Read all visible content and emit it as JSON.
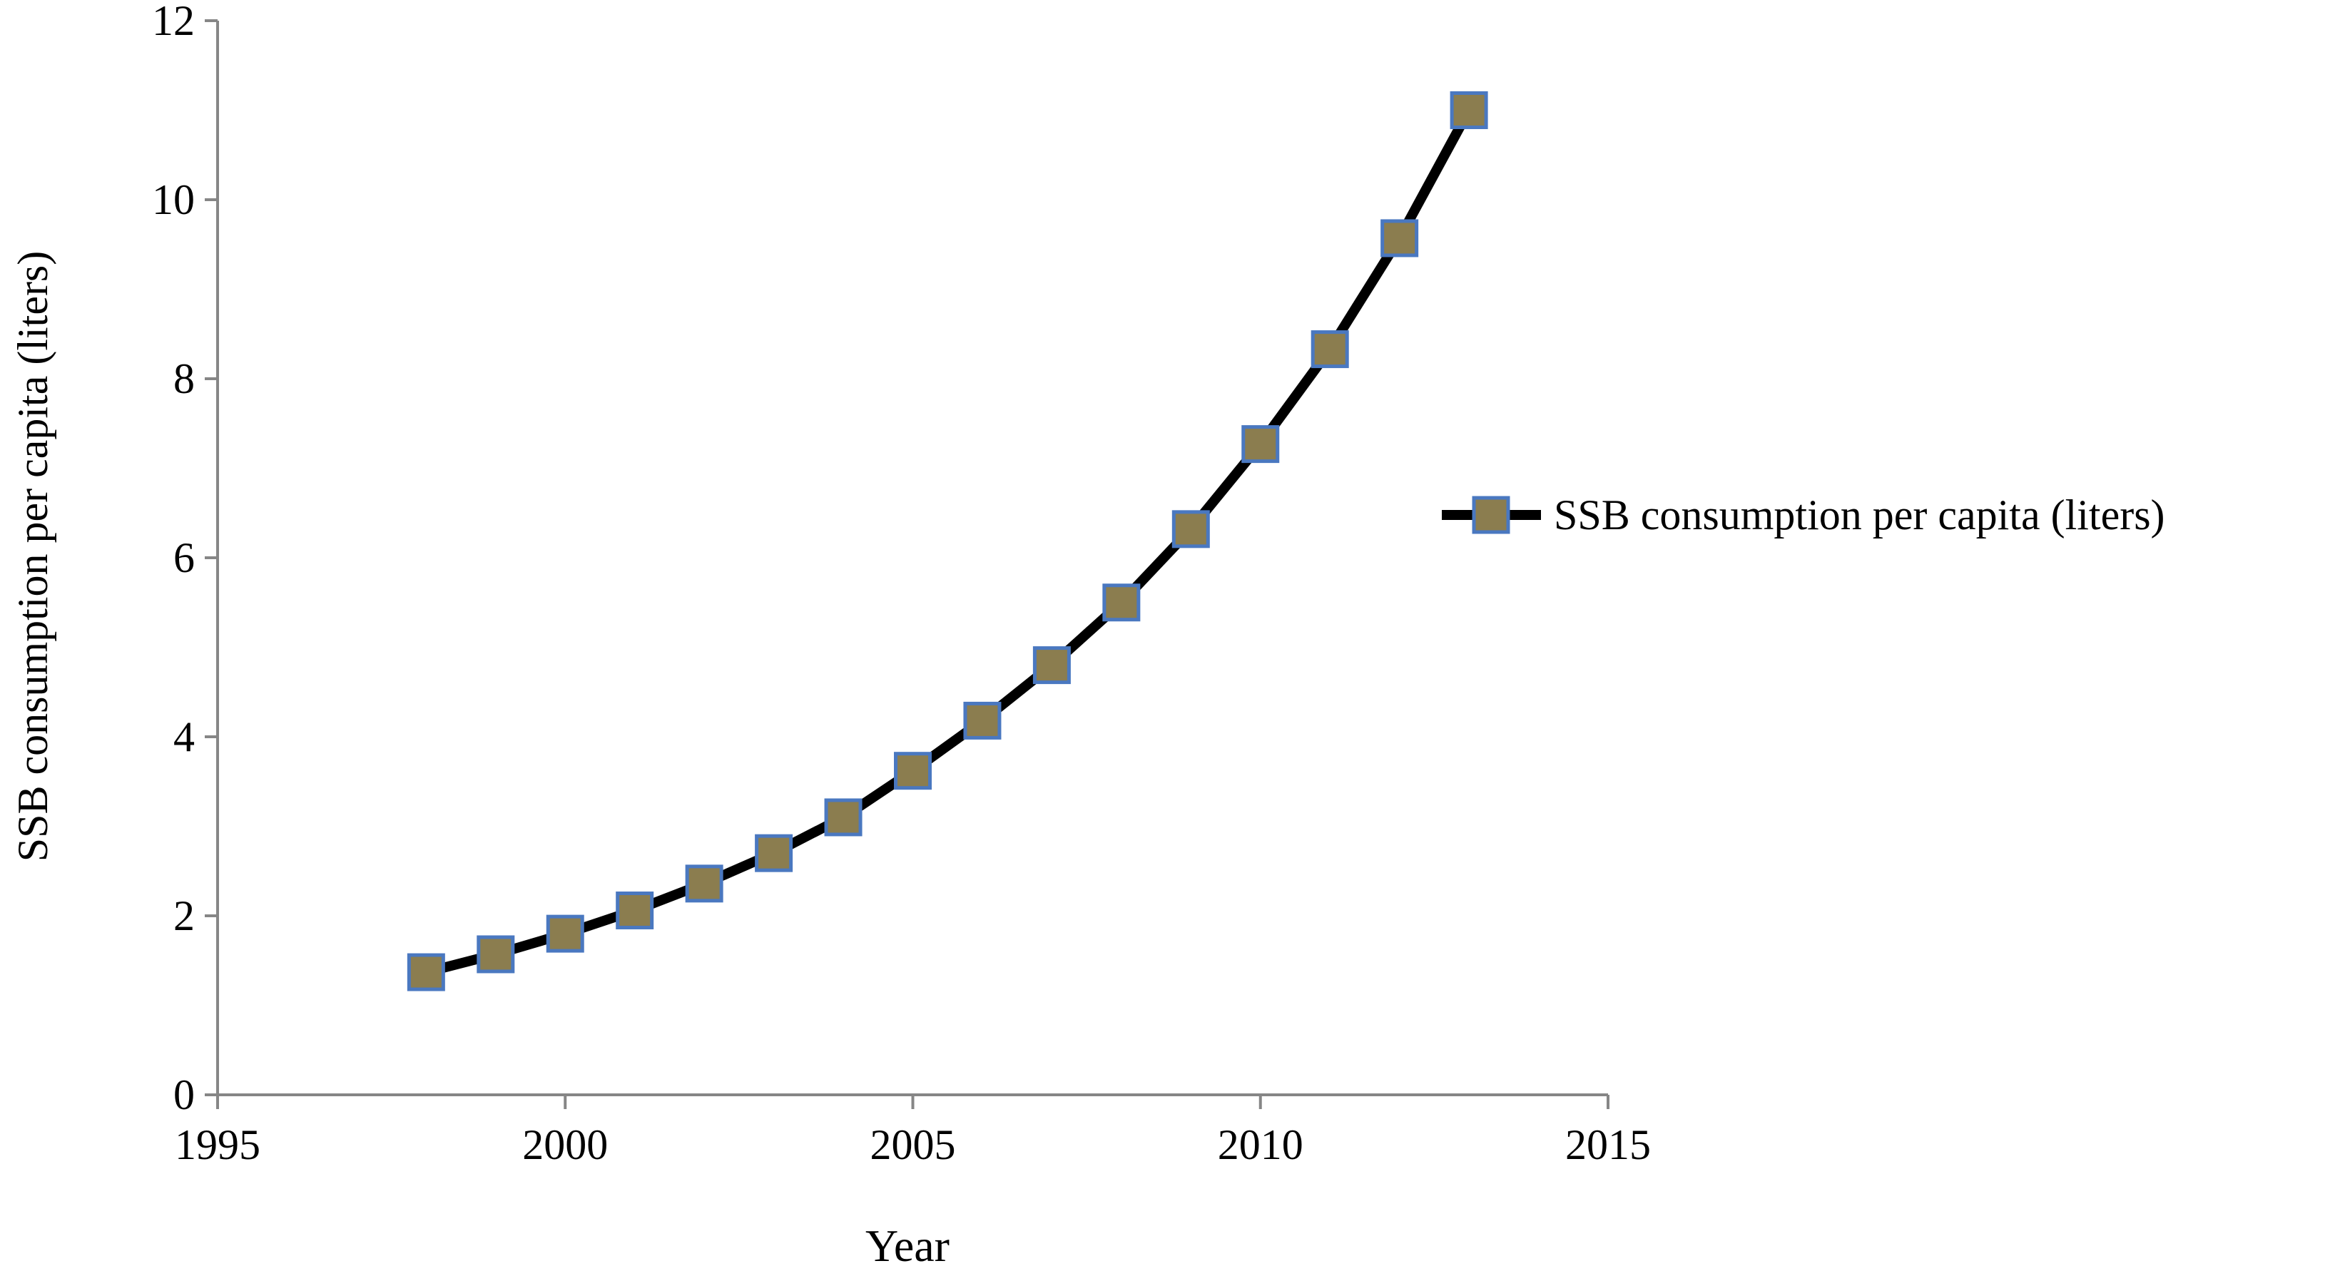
{
  "chart_data": {
    "type": "line",
    "xlabel": "Year",
    "ylabel": "SSB consumption per capita (liters)",
    "xlim": [
      1995,
      2015
    ],
    "ylim": [
      0,
      12
    ],
    "x_ticks": [
      1995,
      2000,
      2005,
      2010,
      2015
    ],
    "y_ticks": [
      0,
      2,
      4,
      6,
      8,
      10,
      12
    ],
    "x_tick_labels": [
      "1995",
      "2000",
      "2005",
      "2010",
      "2015"
    ],
    "y_tick_labels": [
      "0",
      "2",
      "4",
      "6",
      "8",
      "10",
      "12"
    ],
    "grid": false,
    "legend_position": "right",
    "series": [
      {
        "name": "SSB consumption  per capita (liters)",
        "x": [
          1998,
          1999,
          2000,
          2001,
          2002,
          2003,
          2004,
          2005,
          2006,
          2007,
          2008,
          2009,
          2010,
          2011,
          2012,
          2013
        ],
        "values": [
          1.37,
          1.57,
          1.8,
          2.06,
          2.36,
          2.7,
          3.1,
          3.62,
          4.18,
          4.8,
          5.5,
          6.32,
          7.27,
          8.33,
          9.57,
          11.0
        ],
        "line_color": "#000000",
        "marker": "square",
        "marker_fill": "#8b7d4f",
        "marker_edge": "#4a78c0"
      }
    ]
  }
}
